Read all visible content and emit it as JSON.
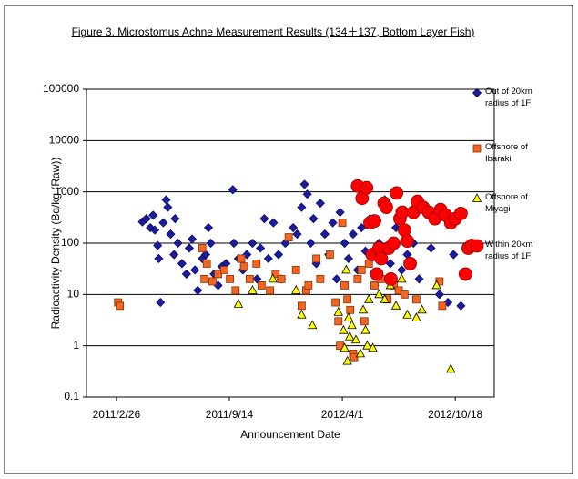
{
  "chart_data": {
    "type": "scatter",
    "title": "Figure 3. Microstomus Achne Measurement Results (134＋137, Bottom Layer Fish)",
    "xlabel": "Announcement Date",
    "ylabel": "Radioactivity Density (Bq/kg (Raw))",
    "log_y": true,
    "grid": true,
    "legend": "right",
    "xlim": [
      "2011/1/4",
      "2012/12/26"
    ],
    "xticks": [
      "2011/2/26",
      "2011/9/14",
      "2012/4/1",
      "2012/10/18"
    ],
    "ylim": [
      0.1,
      100000
    ],
    "yticks": [
      0.1,
      1,
      10,
      100,
      1000,
      10000,
      100000
    ],
    "series": [
      {
        "name": "Out of 20km radius of 1F",
        "marker": "diamond",
        "color": "#1c1c9e",
        "edgecolor": "#0a0a60",
        "x": [
          "2011/4/13",
          "2011/4/20",
          "2011/4/27",
          "2011/5/2",
          "2011/5/5",
          "2011/5/10",
          "2011/5/12",
          "2011/5/15",
          "2011/5/20",
          "2011/5/25",
          "2011/5/28",
          "2011/6/2",
          "2011/6/8",
          "2011/6/10",
          "2011/6/15",
          "2011/6/22",
          "2011/6/30",
          "2011/7/5",
          "2011/7/10",
          "2011/7/15",
          "2011/7/20",
          "2011/7/28",
          "2011/8/3",
          "2011/8/8",
          "2011/8/12",
          "2011/8/18",
          "2011/8/25",
          "2011/9/1",
          "2011/9/8",
          "2011/9/20",
          "2011/9/22",
          "2011/9/30",
          "2011/10/8",
          "2011/10/15",
          "2011/10/25",
          "2011/11/2",
          "2011/11/8",
          "2011/11/15",
          "2011/11/22",
          "2011/12/1",
          "2011/12/10",
          "2011/12/15",
          "2011/12/22",
          "2012/1/5",
          "2012/1/12",
          "2012/1/20",
          "2012/1/25",
          "2012/1/30",
          "2012/2/5",
          "2012/2/10",
          "2012/2/15",
          "2012/2/22",
          "2012/3/1",
          "2012/3/8",
          "2012/3/15",
          "2012/3/22",
          "2012/3/28",
          "2012/4/5",
          "2012/4/12",
          "2012/4/20",
          "2012/4/28",
          "2012/5/5",
          "2012/5/12",
          "2012/5/20",
          "2012/5/28",
          "2012/6/5",
          "2012/6/15",
          "2012/6/25",
          "2012/7/5",
          "2012/7/15",
          "2012/7/25",
          "2012/8/5",
          "2012/8/15",
          "2012/9/5",
          "2012/9/20",
          "2012/10/5",
          "2012/10/15",
          "2012/10/28"
        ],
        "values": [
          260,
          300,
          200,
          350,
          180,
          90,
          50,
          7,
          250,
          700,
          500,
          150,
          60,
          300,
          100,
          40,
          25,
          80,
          120,
          30,
          12,
          50,
          60,
          200,
          100,
          25,
          15,
          35,
          40,
          1100,
          100,
          50,
          30,
          60,
          100,
          20,
          80,
          300,
          50,
          250,
          60,
          20,
          100,
          200,
          150,
          500,
          1400,
          900,
          100,
          300,
          40,
          600,
          150,
          60,
          250,
          20,
          400,
          100,
          50,
          150,
          30,
          200,
          70,
          300,
          15,
          100,
          700,
          40,
          200,
          30,
          60,
          100,
          20,
          80,
          10,
          7,
          60,
          6
        ]
      },
      {
        "name": "Offshore of Ibaraki",
        "marker": "square",
        "color": "#f26522",
        "edgecolor": "#8a3000",
        "x": [
          "2011/3/1",
          "2011/3/4",
          "2011/7/28",
          "2011/8/1",
          "2011/8/5",
          "2011/8/15",
          "2011/8/25",
          "2011/9/5",
          "2011/9/15",
          "2011/9/25",
          "2011/10/5",
          "2011/10/10",
          "2011/10/20",
          "2011/11/1",
          "2011/11/10",
          "2011/11/25",
          "2011/12/5",
          "2011/12/15",
          "2011/12/28",
          "2012/1/10",
          "2012/1/20",
          "2012/1/28",
          "2012/2/1",
          "2012/2/15",
          "2012/2/22",
          "2012/3/10",
          "2012/3/20",
          "2012/3/25",
          "2012/3/28",
          "2012/4/1",
          "2012/4/5",
          "2012/4/10",
          "2012/4/15",
          "2012/4/20",
          "2012/4/22",
          "2012/4/28",
          "2012/5/5",
          "2012/5/10",
          "2012/5/18",
          "2012/5/28",
          "2012/6/8",
          "2012/6/20",
          "2012/7/1",
          "2012/7/10",
          "2012/7/20",
          "2012/8/10",
          "2012/9/20",
          "2012/9/25"
        ],
        "values": [
          7,
          6,
          80,
          20,
          40,
          18,
          25,
          30,
          20,
          12,
          50,
          35,
          20,
          40,
          15,
          12,
          25,
          20,
          130,
          30,
          6,
          12,
          15,
          50,
          20,
          60,
          7,
          3,
          1,
          250,
          15,
          8,
          5,
          0.7,
          0.6,
          20,
          30,
          3,
          40,
          15,
          20,
          8,
          15,
          12,
          10,
          8,
          18,
          6
        ]
      },
      {
        "name": "Offshore of Miyagi",
        "marker": "triangle",
        "color": "#ffff00",
        "edgecolor": "#000000",
        "x": [
          "2011/9/30",
          "2011/10/25",
          "2011/11/30",
          "2012/1/10",
          "2012/1/20",
          "2012/2/8",
          "2012/3/25",
          "2012/4/3",
          "2012/4/5",
          "2012/4/8",
          "2012/4/10",
          "2012/4/12",
          "2012/4/14",
          "2012/4/18",
          "2012/4/25",
          "2012/5/3",
          "2012/5/8",
          "2012/5/12",
          "2012/5/15",
          "2012/5/18",
          "2012/5/25",
          "2012/6/5",
          "2012/6/15",
          "2012/6/25",
          "2012/7/5",
          "2012/7/15",
          "2012/7/25",
          "2012/8/10",
          "2012/8/20",
          "2012/9/15",
          "2012/10/10"
        ],
        "values": [
          6.5,
          12,
          20,
          12,
          4,
          2.5,
          4.5,
          2,
          0.9,
          30,
          0.5,
          3.5,
          1.5,
          2.5,
          1.3,
          0.7,
          5,
          2,
          1,
          8,
          0.9,
          10,
          8,
          15,
          6,
          20,
          4,
          3.5,
          5,
          15,
          0.35
        ]
      },
      {
        "name": "Within 20km radius of 1F",
        "marker": "circle",
        "color": "#ff0000",
        "edgecolor": "#990000",
        "x": [
          "2012/4/28",
          "2012/5/6",
          "2012/5/14",
          "2012/5/20",
          "2012/5/24",
          "2012/5/28",
          "2012/6/1",
          "2012/6/5",
          "2012/6/9",
          "2012/6/14",
          "2012/6/18",
          "2012/6/22",
          "2012/6/26",
          "2012/7/1",
          "2012/7/6",
          "2012/7/12",
          "2012/7/16",
          "2012/7/20",
          "2012/7/25",
          "2012/7/30",
          "2012/8/5",
          "2012/8/12",
          "2012/8/22",
          "2012/9/1",
          "2012/9/12",
          "2012/9/22",
          "2012/10/1",
          "2012/10/10",
          "2012/10/18",
          "2012/10/28",
          "2012/11/5",
          "2012/11/10",
          "2012/11/16"
        ],
        "values": [
          1300,
          750,
          1200,
          250,
          60,
          270,
          25,
          80,
          50,
          600,
          500,
          80,
          20,
          100,
          950,
          300,
          400,
          180,
          110,
          40,
          400,
          650,
          500,
          400,
          300,
          450,
          350,
          250,
          300,
          380,
          25,
          80,
          90
        ]
      }
    ]
  }
}
